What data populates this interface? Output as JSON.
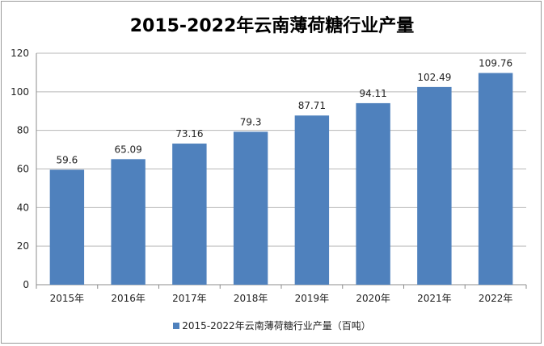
{
  "chart_data": {
    "type": "bar",
    "title": "2015-2022年云南薄荷糖行业产量",
    "categories": [
      "2015年",
      "2016年",
      "2017年",
      "2018年",
      "2019年",
      "2020年",
      "2021年",
      "2022年"
    ],
    "series": [
      {
        "name": "2015-2022年云南薄荷糖行业产量（百吨）",
        "values": [
          59.6,
          65.09,
          73.16,
          79.3,
          87.71,
          94.11,
          102.49,
          109.76
        ],
        "labels": [
          "59.6",
          "65.09",
          "73.16",
          "79.3",
          "87.71",
          "94.11",
          "102.49",
          "109.76"
        ],
        "color": "#4f81bd"
      }
    ],
    "ylim": [
      0,
      120
    ],
    "yticks": [
      0,
      20,
      40,
      60,
      80,
      100,
      120
    ],
    "grid": true,
    "legend": "bottom"
  }
}
